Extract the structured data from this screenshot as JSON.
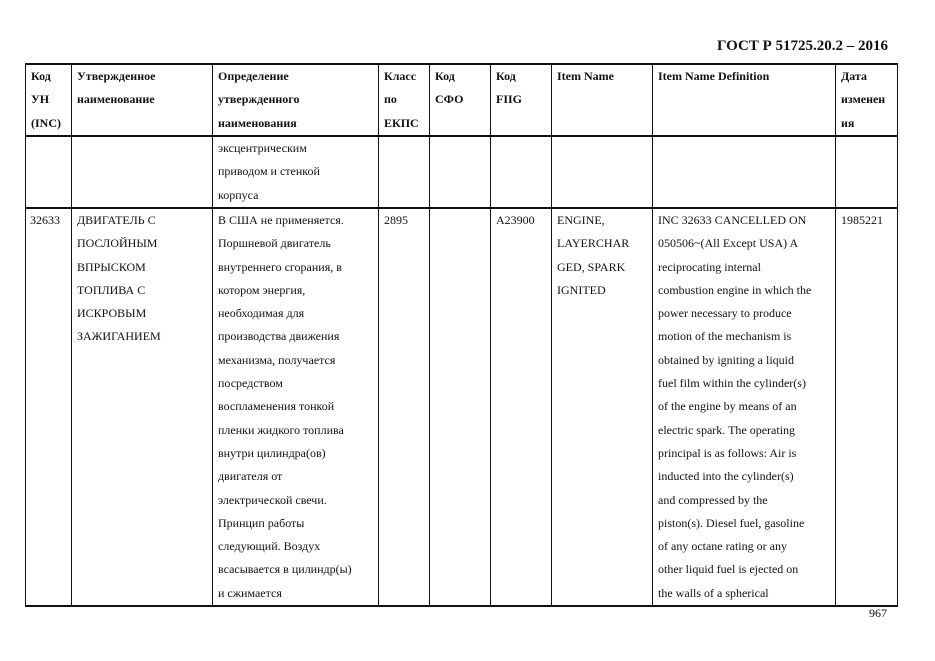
{
  "header": {
    "doc_title": "ГОСТ Р 51725.20.2 – 2016"
  },
  "table": {
    "columns": [
      "Код\nУН\n(INC)",
      "Утвержденное\nнаименование",
      "Определение\nутвержденного\nнаименования",
      "Класс\nпо\nЕКПС",
      "Код\nСФО",
      "Код\nFIIG",
      "Item Name",
      "Item Name Definition",
      "Дата\nизменен\nия"
    ],
    "rows": [
      [
        "",
        "",
        "эксцентрическим\nприводом и стенкой\nкорпуса",
        "",
        "",
        "",
        "",
        "",
        ""
      ],
      [
        "32633",
        "ДВИГАТЕЛЬ С\nПОСЛОЙНЫМ\nВПРЫСКОМ\nТОПЛИВА С\nИСКРОВЫМ\nЗАЖИГАНИЕМ",
        "В США не применяется.\nПоршневой двигатель\nвнутреннего сгорания, в\nкотором энергия,\nнеобходимая для\nпроизводства движения\nмеханизма, получается\nпосредством\nвоспламенения тонкой\nпленки жидкого топлива\nвнутри цилиндра(ов)\nдвигателя от\nэлектрической свечи.\nПринцип работы\nследующий. Воздух\nвсасывается в цилиндр(ы)\nи сжимается",
        "2895",
        "",
        "A23900",
        "ENGINE,\nLAYERCHAR\nGED, SPARK\nIGNITED",
        "INC 32633 CANCELLED ON\n050506~(All Except USA) A\nreciprocating internal\ncombustion engine in which the\npower necessary to produce\nmotion of the mechanism is\nobtained by igniting a liquid\nfuel film within the cylinder(s)\nof the engine by means of an\nelectric spark. The operating\nprincipal is as follows: Air is\ninducted into the cylinder(s)\nand compressed by the\npiston(s). Diesel fuel, gasoline\nof any octane rating or any\nother liquid fuel is ejected on\nthe walls of a spherical",
        "1985221"
      ]
    ]
  },
  "footer": {
    "page_number": "967"
  }
}
